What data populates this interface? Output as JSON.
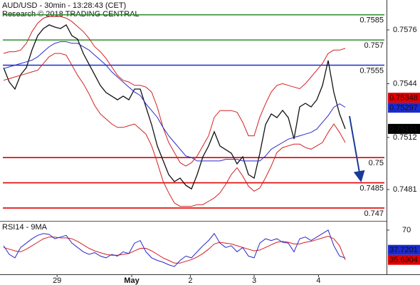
{
  "chart_data": [
    {
      "type": "line",
      "title": "AUD/USD - 30min - 13:28:43 (CET)",
      "subtitle": "Research © 2018 TRADING CENTRAL",
      "x": [
        0,
        1,
        2,
        3,
        4,
        5,
        6,
        7,
        8,
        9,
        10,
        11,
        12,
        13,
        14,
        15,
        16,
        17,
        18,
        19,
        20,
        21,
        22,
        23,
        24,
        25,
        26,
        27,
        28,
        29,
        30,
        31,
        32,
        33,
        34,
        35,
        36,
        37,
        38,
        39,
        40,
        41,
        42,
        43,
        44,
        45,
        46,
        47,
        48,
        49,
        50,
        51,
        52,
        53,
        54,
        55,
        56,
        57,
        58,
        59,
        60
      ],
      "xlim": [
        -0.625,
        67.25
      ],
      "xticks": [
        {
          "value": 9.4,
          "label": "29"
        },
        {
          "value": 22.5,
          "label": "May"
        },
        {
          "value": 32.8,
          "label": "2"
        },
        {
          "value": 44,
          "label": "3"
        },
        {
          "value": 55.3,
          "label": "4"
        }
      ],
      "ylim": [
        0.74632,
        0.75938
      ],
      "yticks": [
        0.7576,
        0.7544,
        0.7512,
        0.7481
      ],
      "series": [
        {
          "color": "#111111",
          "values": [
            0.75535,
            0.7545,
            0.75408,
            0.75493,
            0.75535,
            0.75641,
            0.75726,
            0.75768,
            0.7579,
            0.75777,
            0.75768,
            0.7579,
            0.75726,
            0.75705,
            0.7562,
            0.75556,
            0.75493,
            0.75429,
            0.75387,
            0.75366,
            0.75344,
            0.75366,
            0.75344,
            0.75408,
            0.75408,
            0.75302,
            0.75196,
            0.75069,
            0.74984,
            0.74899,
            0.74857,
            0.74878,
            0.74835,
            0.74814,
            0.74899,
            0.75005,
            0.75069,
            0.75154,
            0.75069,
            0.75048,
            0.75026,
            0.74963,
            0.75005,
            0.74899,
            0.74878,
            0.75026,
            0.75196,
            0.7526,
            0.75238,
            0.75281,
            0.75238,
            0.75111,
            0.75302,
            0.75323,
            0.75302,
            0.75344,
            0.75429,
            0.75578,
            0.75387,
            0.7526,
            0.75171
          ]
        },
        {
          "color": "#d42020",
          "values": [
            0.7562,
            0.7563,
            0.7563,
            0.7564,
            0.7568,
            0.7575,
            0.758,
            0.7583,
            0.7584,
            0.7584,
            0.7584,
            0.7583,
            0.7581,
            0.7578,
            0.7575,
            0.7571,
            0.7566,
            0.7563,
            0.7559,
            0.7554,
            0.7549,
            0.7546,
            0.7545,
            0.7543,
            0.7543,
            0.7542,
            0.7539,
            0.753,
            0.7518,
            0.7509,
            0.7503,
            0.7497,
            0.7495,
            0.7497,
            0.7501,
            0.7507,
            0.7513,
            0.7524,
            0.7528,
            0.7528,
            0.7528,
            0.7527,
            0.7521,
            0.7513,
            0.7513,
            0.7524,
            0.7532,
            0.7539,
            0.7543,
            0.7544,
            0.7543,
            0.7542,
            0.7541,
            0.7544,
            0.7548,
            0.7552,
            0.7556,
            0.7562,
            0.7564,
            0.7564,
            0.7565
          ]
        },
        {
          "color": "#d42020",
          "values": [
            0.7546,
            0.7547,
            0.7548,
            0.7549,
            0.755,
            0.7551,
            0.7552,
            0.7556,
            0.756,
            0.7562,
            0.7562,
            0.7561,
            0.7555,
            0.7549,
            0.7544,
            0.7538,
            0.7531,
            0.7526,
            0.7523,
            0.752,
            0.7518,
            0.7518,
            0.7519,
            0.752,
            0.7517,
            0.7514,
            0.7507,
            0.7497,
            0.7486,
            0.7479,
            0.7473,
            0.7471,
            0.7471,
            0.7471,
            0.7472,
            0.7472,
            0.7474,
            0.7476,
            0.7479,
            0.7484,
            0.749,
            0.7494,
            0.7489,
            0.7483,
            0.748,
            0.7482,
            0.7488,
            0.7495,
            0.7503,
            0.7506,
            0.7507,
            0.7508,
            0.7508,
            0.7506,
            0.7505,
            0.7507,
            0.7509,
            0.7515,
            0.752,
            0.7515,
            0.7509
          ]
        },
        {
          "color": "#2a2ac8",
          "values": [
            0.7553,
            0.7554,
            0.7555,
            0.7556,
            0.7557,
            0.7558,
            0.756,
            0.7563,
            0.7566,
            0.7568,
            0.7569,
            0.7569,
            0.7568,
            0.7568,
            0.7566,
            0.7564,
            0.7561,
            0.7558,
            0.7555,
            0.7551,
            0.7548,
            0.7545,
            0.7542,
            0.7539,
            0.7537,
            0.7532,
            0.7528,
            0.7524,
            0.7518,
            0.7513,
            0.7509,
            0.7505,
            0.7501,
            0.75,
            0.7498,
            0.7498,
            0.7498,
            0.7498,
            0.7498,
            0.7499,
            0.7499,
            0.7499,
            0.7498,
            0.7498,
            0.7498,
            0.7498,
            0.7501,
            0.7505,
            0.7507,
            0.7509,
            0.7511,
            0.7512,
            0.7513,
            0.7514,
            0.7515,
            0.7517,
            0.7521,
            0.7525,
            0.753,
            0.7532,
            0.753
          ]
        }
      ],
      "levels": [
        {
          "value": 0.7585,
          "color": "#2e8b2e"
        },
        {
          "value": 0.757,
          "color": "#2e8b2e"
        },
        {
          "value": 0.7555,
          "color": "#1a2ad0"
        },
        {
          "value": 0.75,
          "color": "#e00000"
        },
        {
          "value": 0.7485,
          "color": "#e00000"
        },
        {
          "value": 0.747,
          "color": "#e00000"
        }
      ],
      "markers": [
        {
          "value": 0.75348,
          "color": "#e00000"
        },
        {
          "value": 0.75297,
          "color": "#1a2ad0"
        },
        {
          "value": 0.75171,
          "color": "#000000"
        }
      ]
    },
    {
      "type": "line",
      "title": "RSI14 - 9MA",
      "x": [
        0,
        1,
        2,
        3,
        4,
        5,
        6,
        7,
        8,
        9,
        10,
        11,
        12,
        13,
        14,
        15,
        16,
        17,
        18,
        19,
        20,
        21,
        22,
        23,
        24,
        25,
        26,
        27,
        28,
        29,
        30,
        31,
        32,
        33,
        34,
        35,
        36,
        37,
        38,
        39,
        40,
        41,
        42,
        43,
        44,
        45,
        46,
        47,
        48,
        49,
        50,
        51,
        52,
        53,
        54,
        55,
        56,
        57,
        58,
        59,
        60
      ],
      "xlim": [
        -0.625,
        67.25
      ],
      "ylim": [
        19,
        79
      ],
      "yticks": [
        70
      ],
      "series": [
        {
          "color": "#d42020",
          "values": [
            50,
            48,
            46,
            45,
            48,
            52,
            56,
            60,
            62,
            62,
            61,
            61,
            60,
            57,
            53,
            49,
            46,
            44,
            42,
            41,
            41,
            42,
            43,
            46,
            49,
            49,
            46,
            42,
            38,
            35,
            32,
            32,
            34,
            36,
            39,
            43,
            48,
            54,
            56,
            55,
            54,
            52,
            50,
            48,
            46,
            47,
            50,
            53,
            56,
            57,
            56,
            54,
            54,
            56,
            57,
            59,
            61,
            63,
            60,
            52,
            35.6904
          ]
        },
        {
          "color": "#2a2ac8",
          "values": [
            52,
            42,
            38,
            50,
            55,
            60,
            64,
            66,
            65,
            60,
            62,
            64,
            55,
            50,
            45,
            42,
            44,
            40,
            38,
            42,
            40,
            45,
            43,
            55,
            58,
            45,
            38,
            35,
            33,
            30,
            28,
            35,
            40,
            38,
            45,
            52,
            58,
            66,
            55,
            50,
            52,
            45,
            50,
            40,
            38,
            55,
            60,
            58,
            60,
            56,
            55,
            45,
            60,
            62,
            58,
            62,
            66,
            70,
            52,
            40,
            37.7201
          ]
        }
      ],
      "markers": [
        {
          "value": 35.6904,
          "color": "#e00000"
        },
        {
          "value": 37.7201,
          "color": "#1a2ad0"
        }
      ]
    }
  ]
}
